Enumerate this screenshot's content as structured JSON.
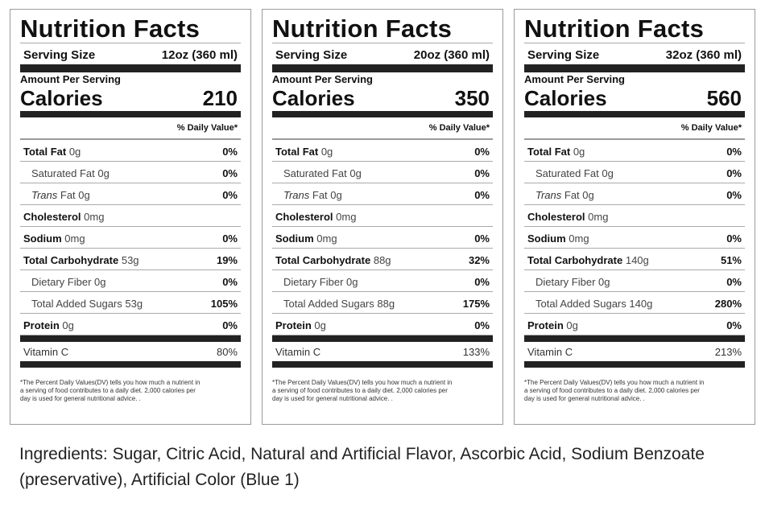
{
  "labels": [
    {
      "title": "Nutrition Facts",
      "serving_label": "Serving Size",
      "serving_value": "12oz (360 ml)",
      "amount_label": "Amount Per Serving",
      "calories_label": "Calories",
      "calories": "210",
      "dv_header": "% Daily Value*",
      "rows": [
        {
          "name": "Total Fat",
          "amount": "0g",
          "pct": "0%",
          "type": "main"
        },
        {
          "name": "Saturated Fat",
          "amount": "0g",
          "pct": "0%",
          "type": "sub"
        },
        {
          "name": "Trans",
          "amount": "Fat 0g",
          "pct": "0%",
          "type": "trans"
        },
        {
          "name": "Cholesterol",
          "amount": "0mg",
          "pct": "",
          "type": "main"
        },
        {
          "name": "Sodium",
          "amount": "0mg",
          "pct": "0%",
          "type": "main"
        },
        {
          "name": "Total Carbohydrate",
          "amount": "53g",
          "pct": "19%",
          "type": "main"
        },
        {
          "name": "Dietary Fiber",
          "amount": "0g",
          "pct": "0%",
          "type": "sub"
        },
        {
          "name": "Total Added Sugars",
          "amount": "53g",
          "pct": "105%",
          "type": "sub"
        },
        {
          "name": "Protein",
          "amount": "0g",
          "pct": "0%",
          "type": "main"
        }
      ],
      "vitamin_label": "Vitamin C",
      "vitamin_pct": "80%",
      "footnote": "*The Percent Daily Values(DV) tells you how much a nutrient in a serving of food contributes to a daily diet. 2,000 calories per day is used for general nutritional advice.  ."
    },
    {
      "title": "Nutrition Facts",
      "serving_label": "Serving Size",
      "serving_value": "20oz (360 ml)",
      "amount_label": "Amount Per Serving",
      "calories_label": "Calories",
      "calories": "350",
      "dv_header": "% Daily Value*",
      "rows": [
        {
          "name": "Total Fat",
          "amount": "0g",
          "pct": "0%",
          "type": "main"
        },
        {
          "name": "Saturated Fat",
          "amount": "0g",
          "pct": "0%",
          "type": "sub"
        },
        {
          "name": "Trans",
          "amount": "Fat 0g",
          "pct": "0%",
          "type": "trans"
        },
        {
          "name": "Cholesterol",
          "amount": "0mg",
          "pct": "",
          "type": "main"
        },
        {
          "name": "Sodium",
          "amount": "0mg",
          "pct": "0%",
          "type": "main"
        },
        {
          "name": "Total Carbohydrate",
          "amount": "88g",
          "pct": "32%",
          "type": "main"
        },
        {
          "name": "Dietary Fiber",
          "amount": "0g",
          "pct": "0%",
          "type": "sub"
        },
        {
          "name": "Total Added Sugars",
          "amount": "88g",
          "pct": "175%",
          "type": "sub"
        },
        {
          "name": "Protein",
          "amount": "0g",
          "pct": "0%",
          "type": "main"
        }
      ],
      "vitamin_label": "Vitamin C",
      "vitamin_pct": "133%",
      "footnote": "*The Percent Daily Values(DV) tells you how much a nutrient in a serving of food contributes to a daily diet. 2,000 calories per day is used for general nutritional advice.  ."
    },
    {
      "title": "Nutrition Facts",
      "serving_label": "Serving Size",
      "serving_value": "32oz (360 ml)",
      "amount_label": "Amount Per Serving",
      "calories_label": "Calories",
      "calories": "560",
      "dv_header": "% Daily Value*",
      "rows": [
        {
          "name": "Total Fat",
          "amount": "0g",
          "pct": "0%",
          "type": "main"
        },
        {
          "name": "Saturated Fat",
          "amount": "0g",
          "pct": "0%",
          "type": "sub"
        },
        {
          "name": "Trans",
          "amount": "Fat 0g",
          "pct": "0%",
          "type": "trans"
        },
        {
          "name": "Cholesterol",
          "amount": "0mg",
          "pct": "",
          "type": "main"
        },
        {
          "name": "Sodium",
          "amount": "0mg",
          "pct": "0%",
          "type": "main"
        },
        {
          "name": "Total Carbohydrate",
          "amount": "140g",
          "pct": "51%",
          "type": "main"
        },
        {
          "name": "Dietary Fiber",
          "amount": "0g",
          "pct": "0%",
          "type": "sub"
        },
        {
          "name": "Total Added Sugars",
          "amount": "140g",
          "pct": "280%",
          "type": "sub"
        },
        {
          "name": "Protein",
          "amount": "0g",
          "pct": "0%",
          "type": "main"
        }
      ],
      "vitamin_label": "Vitamin C",
      "vitamin_pct": "213%",
      "footnote": "*The Percent Daily Values(DV) tells you how much a nutrient in a serving of food contributes to a daily diet. 2,000 calories per day is used for general nutritional advice.  ."
    }
  ],
  "ingredients": "Ingredients:  Sugar, Citric Acid, Natural and Artificial Flavor, Ascorbic Acid, Sodium Benzoate (preservative),  Artificial Color (Blue 1)"
}
